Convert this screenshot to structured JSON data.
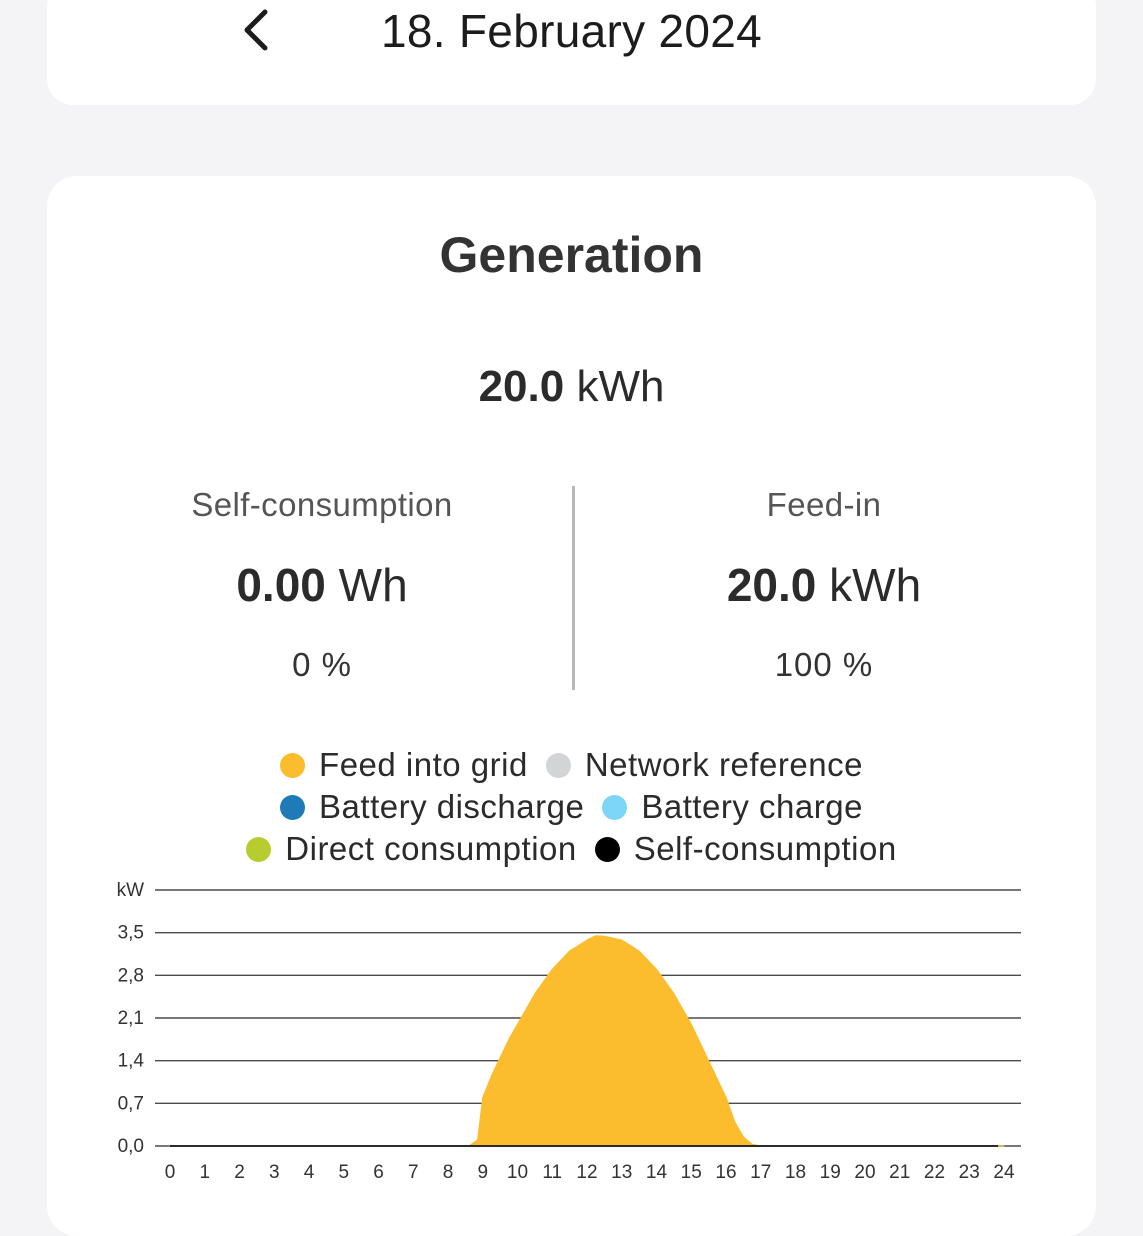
{
  "header": {
    "title": "18. February 2024",
    "back_icon": "chevron-left-icon"
  },
  "card": {
    "title": "Generation",
    "total_value": "20.0",
    "total_unit": "kWh",
    "self_consumption": {
      "label": "Self-consumption",
      "value": "0.00",
      "unit": "Wh",
      "percent": "0 %"
    },
    "feed_in": {
      "label": "Feed-in",
      "value": "20.0",
      "unit": "kWh",
      "percent": "100 %"
    }
  },
  "legend": [
    {
      "label": "Feed into grid",
      "color": "#fbbd2e"
    },
    {
      "label": "Network reference",
      "color": "#d3d4d6"
    },
    {
      "label": "Battery discharge",
      "color": "#1f7ab8"
    },
    {
      "label": "Battery charge",
      "color": "#7dd6f7"
    },
    {
      "label": "Direct consumption",
      "color": "#b7cc2e"
    },
    {
      "label": "Self-consumption",
      "color": "#000000"
    }
  ],
  "chart_data": {
    "type": "area",
    "ylabel": "kW",
    "y_ticks": [
      "0,0",
      "0,7",
      "1,4",
      "2,1",
      "2,8",
      "3,5"
    ],
    "ylim": [
      0,
      4.2
    ],
    "x_ticks": [
      "0",
      "1",
      "2",
      "3",
      "4",
      "5",
      "6",
      "7",
      "8",
      "9",
      "10",
      "11",
      "12",
      "13",
      "14",
      "15",
      "16",
      "17",
      "18",
      "19",
      "20",
      "21",
      "22",
      "23",
      "24"
    ],
    "xlim": [
      0,
      24
    ],
    "grid": true,
    "series": [
      {
        "name": "Feed into grid",
        "color": "#fbbd2e",
        "x": [
          0,
          8.6,
          8.85,
          9,
          9.25,
          9.5,
          9.75,
          10,
          10.5,
          11,
          11.5,
          12,
          12.25,
          12.5,
          13,
          13.5,
          14,
          14.5,
          15,
          15.5,
          16,
          16.25,
          16.5,
          16.75,
          17,
          24
        ],
        "y": [
          0,
          0,
          0.1,
          0.8,
          1.15,
          1.45,
          1.75,
          2.0,
          2.5,
          2.9,
          3.2,
          3.38,
          3.45,
          3.44,
          3.38,
          3.2,
          2.9,
          2.5,
          2.0,
          1.4,
          0.8,
          0.4,
          0.15,
          0.03,
          0,
          0
        ]
      }
    ]
  }
}
